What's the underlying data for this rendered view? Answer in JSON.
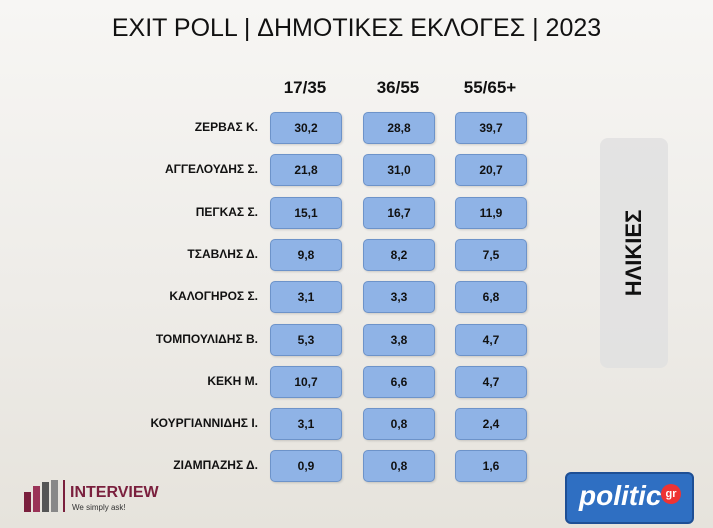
{
  "header": {
    "title": "EXIT POLL | ΔΗΜΟΤΙΚΕΣ ΕΚΛΟΓΕΣ | 2023"
  },
  "table": {
    "columns": [
      "17/35",
      "36/55",
      "55/65+"
    ],
    "rows": [
      [
        "ΖΕΡΒΑΣ Κ.",
        "30,2",
        "28,8",
        "39,7"
      ],
      [
        "ΑΓΓΕΛΟΥΔΗΣ Σ.",
        "21,8",
        "31,0",
        "20,7"
      ],
      [
        "ΠΕΓΚΑΣ Σ.",
        "15,1",
        "16,7",
        "11,9"
      ],
      [
        "ΤΣΑΒΛΗΣ Δ.",
        "9,8",
        "8,2",
        "7,5"
      ],
      [
        "ΚΑΛΟΓΗΡΟΣ Σ.",
        "3,1",
        "3,3",
        "6,8"
      ],
      [
        "ΤΟΜΠΟΥΛΙΔΗΣ Β.",
        "5,3",
        "3,8",
        "4,7"
      ],
      [
        "ΚΕΚΗ Μ.",
        "10,7",
        "6,6",
        "4,7"
      ],
      [
        "ΚΟΥΡΓΙΑΝΝΙΔΗΣ Ι.",
        "3,1",
        "0,8",
        "2,4"
      ],
      [
        "ΖΙΑΜΠΑΖΗΣ Δ.",
        "0,9",
        "0,8",
        "1,6"
      ]
    ]
  },
  "side_label": "ΗΛΙΚΙΕΣ",
  "footer": {
    "pollster": "INTERVIEW",
    "pollster_tagline": "We simply ask!",
    "site": "politic",
    "site_suffix": "gr"
  }
}
